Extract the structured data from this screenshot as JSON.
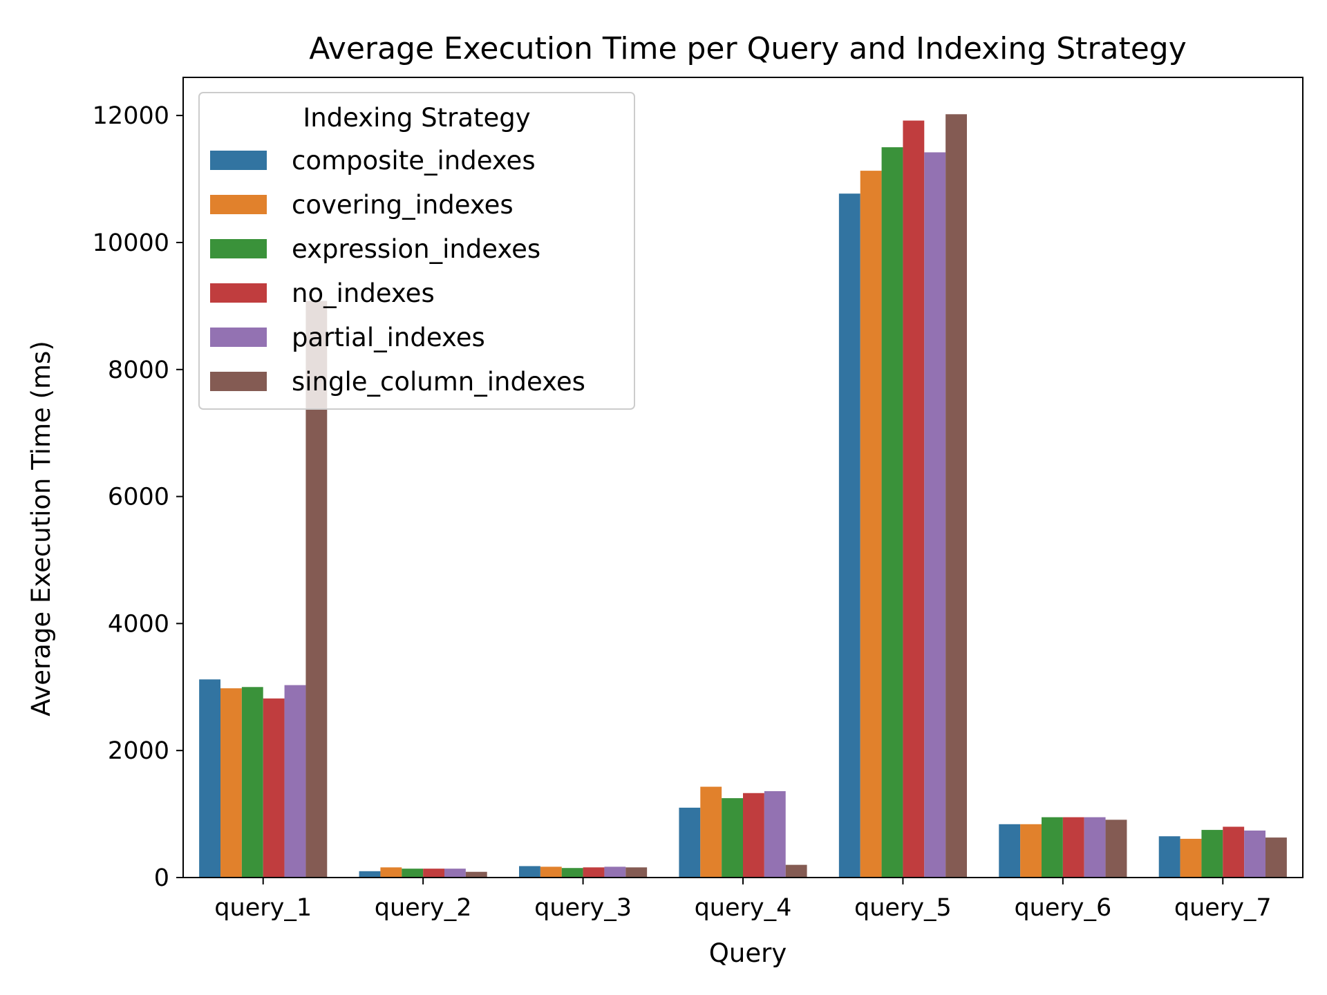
{
  "chart_data": {
    "type": "bar",
    "title": "Average Execution Time per Query and Indexing Strategy",
    "xlabel": "Query",
    "ylabel": "Average Execution Time (ms)",
    "ylim": [
      0,
      12600
    ],
    "yticks": [
      0,
      2000,
      4000,
      6000,
      8000,
      10000,
      12000
    ],
    "grid": false,
    "legend": {
      "title": "Indexing Strategy",
      "placement": "top-left"
    },
    "categories": [
      "query_1",
      "query_2",
      "query_3",
      "query_4",
      "query_5",
      "query_6",
      "query_7"
    ],
    "series": [
      {
        "name": "composite_indexes",
        "color": "#3274a1",
        "values": [
          3120,
          100,
          180,
          1100,
          10770,
          840,
          650
        ]
      },
      {
        "name": "covering_indexes",
        "color": "#e1812c",
        "values": [
          2980,
          160,
          170,
          1430,
          11130,
          840,
          610
        ]
      },
      {
        "name": "expression_indexes",
        "color": "#3a923a",
        "values": [
          3000,
          140,
          150,
          1250,
          11500,
          950,
          750
        ]
      },
      {
        "name": "no_indexes",
        "color": "#c03d3e",
        "values": [
          2820,
          140,
          160,
          1330,
          11920,
          950,
          800
        ]
      },
      {
        "name": "partial_indexes",
        "color": "#9372b2",
        "values": [
          3030,
          140,
          170,
          1360,
          11420,
          950,
          740
        ]
      },
      {
        "name": "single_column_indexes",
        "color": "#845b53",
        "values": [
          9080,
          90,
          160,
          200,
          12020,
          910,
          630
        ]
      }
    ]
  }
}
